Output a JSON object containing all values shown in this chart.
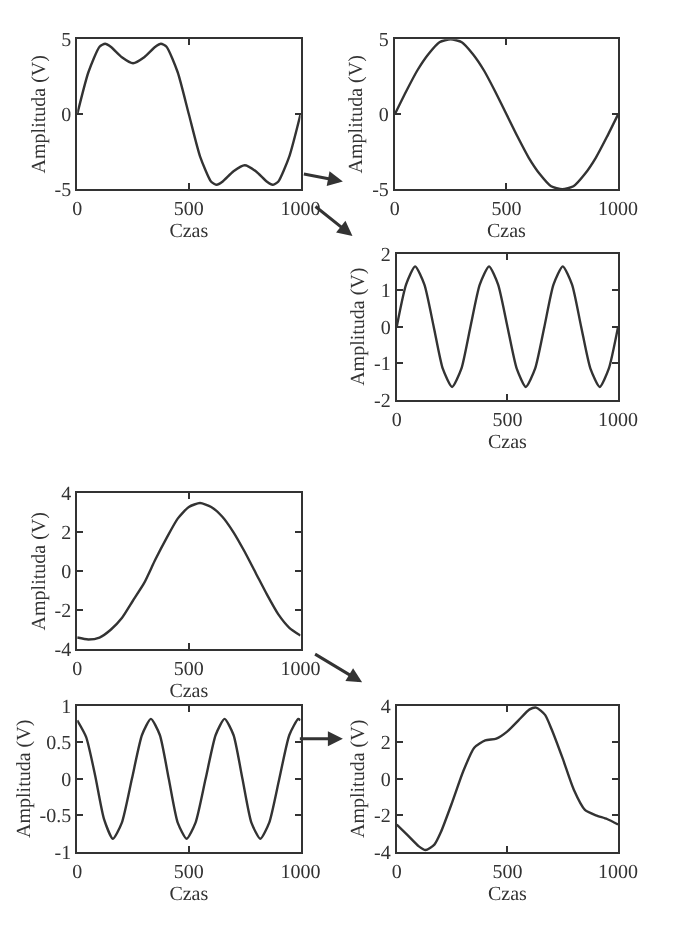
{
  "chart_data": [
    {
      "type": "line",
      "xlabel": "Czas",
      "ylabel": "Amplituda (V)",
      "xlim": [
        0,
        1000
      ],
      "ylim": [
        -5,
        5
      ],
      "xticks": [
        0,
        500,
        1000
      ],
      "yticks": [
        -5,
        0,
        5
      ],
      "line_style": "solid",
      "marker": "none",
      "x": [
        0,
        50,
        100,
        125,
        150,
        200,
        250,
        300,
        350,
        375,
        400,
        450,
        500,
        550,
        600,
        625,
        650,
        700,
        750,
        800,
        850,
        875,
        900,
        950,
        1000
      ],
      "series": [
        {
          "color": "#333333",
          "values": [
            0,
            2.8,
            4.5,
            4.7,
            4.5,
            3.8,
            3.4,
            3.8,
            4.5,
            4.7,
            4.5,
            2.8,
            0,
            -2.8,
            -4.5,
            -4.7,
            -4.5,
            -3.8,
            -3.4,
            -3.8,
            -4.5,
            -4.7,
            -4.5,
            -2.8,
            0
          ]
        }
      ]
    },
    {
      "type": "line",
      "xlabel": "Czas",
      "ylabel": "Amplituda (V)",
      "xlim": [
        0,
        1000
      ],
      "ylim": [
        -5,
        5
      ],
      "xticks": [
        0,
        500,
        1000
      ],
      "yticks": [
        -5,
        0,
        5
      ],
      "line_style": "solid",
      "marker": "none",
      "x": [
        0,
        50,
        100,
        150,
        200,
        250,
        300,
        350,
        400,
        450,
        500,
        550,
        600,
        650,
        700,
        750,
        800,
        850,
        900,
        950,
        1000
      ],
      "series": [
        {
          "color": "#333333",
          "values": [
            0,
            1.5,
            2.9,
            4.0,
            4.8,
            5,
            4.8,
            4.0,
            2.9,
            1.5,
            0,
            -1.5,
            -2.9,
            -4.0,
            -4.8,
            -5,
            -4.8,
            -4.0,
            -2.9,
            -1.5,
            0
          ]
        }
      ]
    },
    {
      "type": "line",
      "xlabel": "Czas",
      "ylabel": "Amplituda (V)",
      "xlim": [
        0,
        1000
      ],
      "ylim": [
        -2,
        2
      ],
      "xticks": [
        0,
        500,
        1000
      ],
      "yticks": [
        -2,
        -1,
        0,
        1,
        2
      ],
      "line_style": "solid",
      "marker": "none",
      "x": [
        0,
        42,
        83,
        125,
        167,
        208,
        250,
        292,
        333,
        375,
        417,
        458,
        500,
        542,
        583,
        625,
        667,
        708,
        750,
        792,
        833,
        875,
        917,
        958,
        1000
      ],
      "series": [
        {
          "color": "#333333",
          "values": [
            0,
            1.15,
            1.65,
            1.15,
            0,
            -1.15,
            -1.65,
            -1.15,
            0,
            1.15,
            1.65,
            1.15,
            0,
            -1.15,
            -1.65,
            -1.15,
            0,
            1.15,
            1.65,
            1.15,
            0,
            -1.15,
            -1.65,
            -1.15,
            0
          ]
        }
      ]
    },
    {
      "type": "line",
      "xlabel": "Czas",
      "ylabel": "Amplituda (V)",
      "xlim": [
        0,
        1000
      ],
      "ylim": [
        -4,
        4
      ],
      "xticks": [
        0,
        500,
        1000
      ],
      "yticks": [
        -4,
        -2,
        0,
        2,
        4
      ],
      "line_style": "solid",
      "marker": "none",
      "x": [
        0,
        50,
        100,
        150,
        200,
        250,
        300,
        350,
        400,
        450,
        500,
        550,
        600,
        650,
        700,
        750,
        800,
        850,
        900,
        950,
        1000
      ],
      "series": [
        {
          "color": "#333333",
          "values": [
            -3.4,
            -3.5,
            -3.4,
            -3.0,
            -2.4,
            -1.5,
            -0.6,
            0.6,
            1.7,
            2.7,
            3.3,
            3.5,
            3.3,
            2.8,
            2.0,
            1.0,
            -0.1,
            -1.2,
            -2.2,
            -2.9,
            -3.3
          ]
        }
      ]
    },
    {
      "type": "line",
      "xlabel": "Czas",
      "ylabel": "Amplituda (V)",
      "xlim": [
        0,
        1000
      ],
      "ylim": [
        -1,
        1
      ],
      "xticks": [
        0,
        500,
        1000
      ],
      "yticks": [
        -1,
        -0.5,
        0,
        0.5,
        1
      ],
      "line_style": "solid",
      "marker": "none",
      "x": [
        0,
        40,
        80,
        120,
        160,
        200,
        245,
        290,
        330,
        370,
        410,
        450,
        490,
        530,
        575,
        620,
        660,
        700,
        740,
        780,
        820,
        860,
        905,
        950,
        990,
        1000
      ],
      "series": [
        {
          "color": "#333333",
          "values": [
            0.8,
            0.57,
            0.05,
            -0.55,
            -0.82,
            -0.6,
            0,
            0.6,
            0.82,
            0.6,
            0,
            -0.6,
            -0.82,
            -0.6,
            0,
            0.6,
            0.82,
            0.6,
            0,
            -0.6,
            -0.82,
            -0.6,
            0,
            0.6,
            0.82,
            0.8
          ]
        }
      ]
    },
    {
      "type": "line",
      "xlabel": "Czas",
      "ylabel": "Amplituda (V)",
      "xlim": [
        0,
        1000
      ],
      "ylim": [
        -4,
        4
      ],
      "xticks": [
        0,
        500,
        1000
      ],
      "yticks": [
        -4,
        -2,
        0,
        2,
        4
      ],
      "line_style": "solid",
      "marker": "none",
      "x": [
        0,
        50,
        100,
        130,
        170,
        200,
        250,
        300,
        350,
        400,
        450,
        500,
        550,
        600,
        630,
        670,
        700,
        750,
        800,
        850,
        900,
        950,
        1000
      ],
      "series": [
        {
          "color": "#333333",
          "values": [
            -2.5,
            -3.1,
            -3.7,
            -3.9,
            -3.6,
            -2.9,
            -1.3,
            0.4,
            1.7,
            2.1,
            2.2,
            2.6,
            3.2,
            3.8,
            3.9,
            3.5,
            2.7,
            1.1,
            -0.6,
            -1.7,
            -2.0,
            -2.2,
            -2.5
          ]
        }
      ]
    }
  ]
}
